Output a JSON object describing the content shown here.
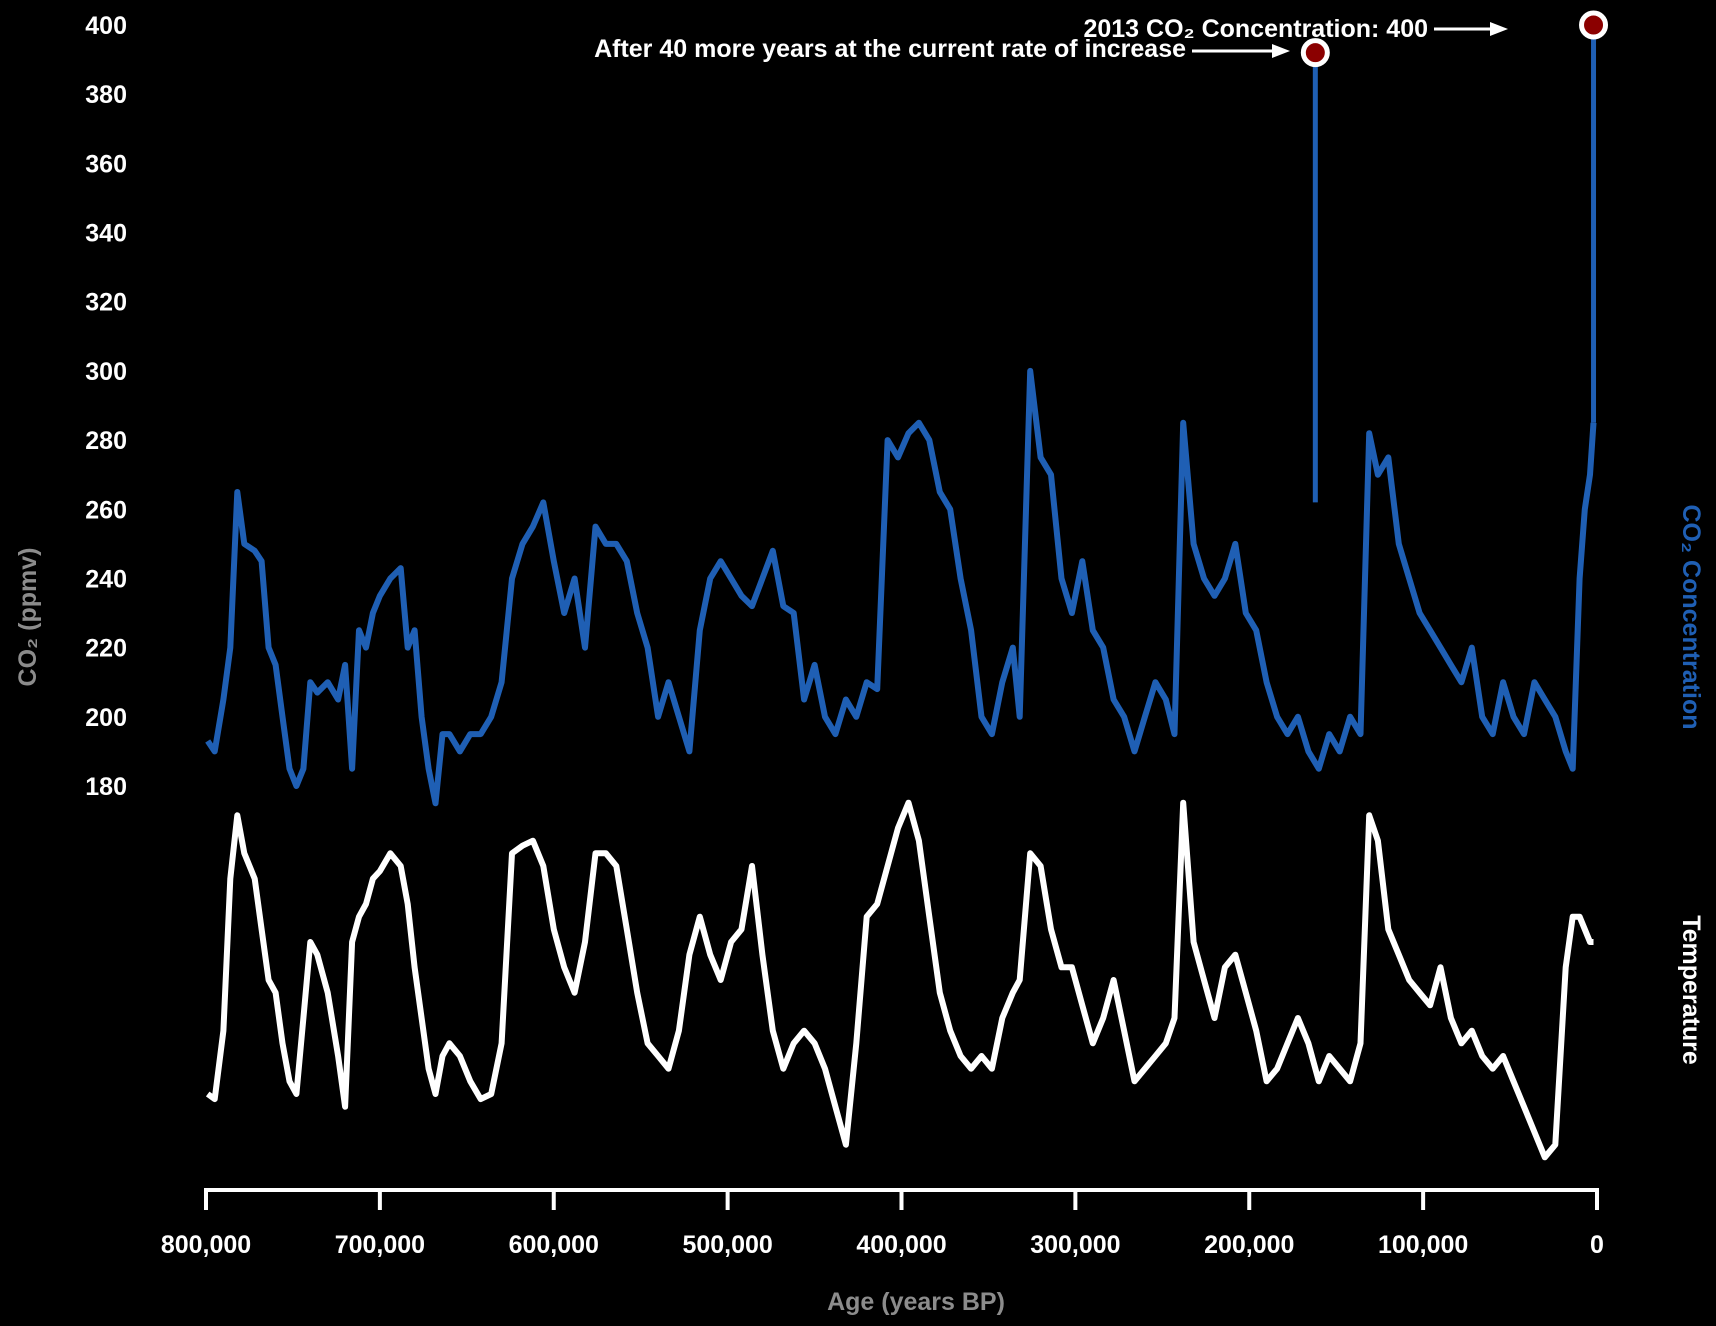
{
  "chart_data": {
    "type": "line",
    "xlabel": "Age (years BP)",
    "ylabel": "CO₂ (ppmv)",
    "xlim": [
      800000,
      0
    ],
    "ylim": [
      180,
      400
    ],
    "x_ticks": [
      "800,000",
      "700,000",
      "600,000",
      "500,000",
      "400,000",
      "300,000",
      "200,000",
      "100,000",
      "0"
    ],
    "y_ticks": [
      "180",
      "200",
      "220",
      "240",
      "260",
      "280",
      "300",
      "320",
      "340",
      "360",
      "380",
      "400"
    ],
    "colors": {
      "co2": "#1f5fb4",
      "temperature": "#ffffff",
      "marker": "#8b0000",
      "background": "#000000"
    },
    "series": [
      {
        "name": "CO₂ Concentration",
        "x": [
          799000,
          795000,
          790000,
          786000,
          782000,
          778000,
          772000,
          768000,
          764000,
          760000,
          756000,
          752000,
          748000,
          744000,
          740000,
          736000,
          730000,
          724000,
          720000,
          716000,
          712000,
          708000,
          704000,
          700000,
          694000,
          688000,
          684000,
          680000,
          676000,
          672000,
          668000,
          664000,
          660000,
          654000,
          648000,
          642000,
          636000,
          630000,
          624000,
          618000,
          612000,
          606000,
          600000,
          594000,
          588000,
          582000,
          576000,
          570000,
          564000,
          558000,
          552000,
          546000,
          540000,
          534000,
          528000,
          522000,
          516000,
          510000,
          504000,
          498000,
          492000,
          486000,
          480000,
          474000,
          468000,
          462000,
          456000,
          450000,
          444000,
          438000,
          432000,
          426000,
          420000,
          414000,
          408000,
          402000,
          396000,
          390000,
          384000,
          378000,
          372000,
          366000,
          360000,
          354000,
          348000,
          342000,
          336000,
          332000,
          326000,
          320000,
          314000,
          308000,
          302000,
          296000,
          290000,
          284000,
          278000,
          272000,
          266000,
          260000,
          254000,
          248000,
          243000,
          238000,
          232000,
          226000,
          220000,
          214000,
          208000,
          202000,
          196000,
          190000,
          184000,
          178000,
          172000,
          166000,
          160000,
          154000,
          148000,
          142000,
          136000,
          131000,
          126000,
          120000,
          114000,
          108000,
          102000,
          96000,
          90000,
          84000,
          78000,
          72000,
          66000,
          60000,
          54000,
          48000,
          42000,
          36000,
          30000,
          24000,
          18000,
          14000,
          10000,
          7000,
          4000,
          2000
        ],
        "values": [
          193,
          190,
          205,
          220,
          265,
          250,
          248,
          245,
          220,
          215,
          200,
          185,
          180,
          185,
          210,
          207,
          210,
          205,
          215,
          185,
          225,
          220,
          230,
          235,
          240,
          243,
          220,
          225,
          200,
          185,
          175,
          195,
          195,
          190,
          195,
          195,
          200,
          210,
          240,
          250,
          255,
          262,
          245,
          230,
          240,
          220,
          255,
          250,
          250,
          245,
          230,
          220,
          200,
          210,
          200,
          190,
          225,
          240,
          245,
          240,
          235,
          232,
          240,
          248,
          232,
          230,
          205,
          215,
          200,
          195,
          205,
          200,
          210,
          208,
          280,
          275,
          282,
          285,
          280,
          265,
          260,
          240,
          225,
          200,
          195,
          210,
          220,
          200,
          300,
          275,
          270,
          240,
          230,
          245,
          225,
          220,
          205,
          200,
          190,
          200,
          210,
          205,
          195,
          285,
          250,
          240,
          235,
          240,
          250,
          230,
          225,
          210,
          200,
          195,
          200,
          190,
          185,
          195,
          190,
          200,
          195,
          282,
          270,
          275,
          250,
          240,
          230,
          225,
          220,
          215,
          210,
          220,
          200,
          195,
          210,
          200,
          195,
          210,
          205,
          200,
          190,
          185,
          240,
          260,
          270,
          285
        ]
      },
      {
        "name": "Temperature",
        "x": [
          799000,
          795000,
          790000,
          786000,
          782000,
          778000,
          772000,
          768000,
          764000,
          760000,
          756000,
          752000,
          748000,
          744000,
          740000,
          736000,
          730000,
          724000,
          720000,
          716000,
          712000,
          708000,
          704000,
          700000,
          694000,
          688000,
          684000,
          680000,
          676000,
          672000,
          668000,
          664000,
          660000,
          654000,
          648000,
          642000,
          636000,
          630000,
          624000,
          618000,
          612000,
          606000,
          600000,
          594000,
          588000,
          582000,
          576000,
          570000,
          564000,
          558000,
          552000,
          546000,
          540000,
          534000,
          528000,
          522000,
          516000,
          510000,
          504000,
          498000,
          492000,
          486000,
          480000,
          474000,
          468000,
          462000,
          456000,
          450000,
          444000,
          438000,
          432000,
          426000,
          420000,
          414000,
          408000,
          402000,
          396000,
          390000,
          384000,
          378000,
          372000,
          366000,
          360000,
          354000,
          348000,
          342000,
          336000,
          332000,
          326000,
          320000,
          314000,
          308000,
          302000,
          296000,
          290000,
          284000,
          278000,
          272000,
          266000,
          260000,
          254000,
          248000,
          243000,
          238000,
          232000,
          226000,
          220000,
          214000,
          208000,
          202000,
          196000,
          190000,
          184000,
          178000,
          172000,
          166000,
          160000,
          154000,
          148000,
          142000,
          136000,
          131000,
          126000,
          120000,
          114000,
          108000,
          102000,
          96000,
          90000,
          84000,
          78000,
          72000,
          66000,
          60000,
          54000,
          48000,
          42000,
          36000,
          30000,
          24000,
          18000,
          14000,
          10000,
          7000,
          4000,
          2000
        ],
        "values": [
          -8.0,
          -8.2,
          -5.5,
          0.5,
          3.0,
          1.5,
          0.5,
          -1.5,
          -3.5,
          -4.0,
          -6.0,
          -7.5,
          -8.0,
          -5.0,
          -2.0,
          -2.5,
          -4.0,
          -6.5,
          -8.5,
          -2.0,
          -1.0,
          -0.5,
          0.5,
          0.8,
          1.5,
          1.0,
          -0.5,
          -3.0,
          -5.0,
          -7.0,
          -8.0,
          -6.5,
          -6.0,
          -6.5,
          -7.5,
          -8.2,
          -8.0,
          -6.0,
          1.5,
          1.8,
          2.0,
          1.0,
          -1.5,
          -3.0,
          -4.0,
          -2.0,
          1.5,
          1.5,
          1.0,
          -1.5,
          -4.0,
          -6.0,
          -6.5,
          -7.0,
          -5.5,
          -2.5,
          -1.0,
          -2.5,
          -3.5,
          -2.0,
          -1.5,
          1.0,
          -2.5,
          -5.5,
          -7.0,
          -6.0,
          -5.5,
          -6.0,
          -7.0,
          -8.5,
          -10.0,
          -6.0,
          -1.0,
          -0.5,
          1.0,
          2.5,
          3.5,
          2.0,
          -1.0,
          -4.0,
          -5.5,
          -6.5,
          -7.0,
          -6.5,
          -7.0,
          -5.0,
          -4.0,
          -3.5,
          1.5,
          1.0,
          -1.5,
          -3.0,
          -3.0,
          -4.5,
          -6.0,
          -5.0,
          -3.5,
          -5.5,
          -7.5,
          -7.0,
          -6.5,
          -6.0,
          -5.0,
          3.5,
          -2.0,
          -3.5,
          -5.0,
          -3.0,
          -2.5,
          -4.0,
          -5.5,
          -7.5,
          -7.0,
          -6.0,
          -5.0,
          -6.0,
          -7.5,
          -6.5,
          -7.0,
          -7.5,
          -6.0,
          3.0,
          2.0,
          -1.5,
          -2.5,
          -3.5,
          -4.0,
          -4.5,
          -3.0,
          -5.0,
          -6.0,
          -5.5,
          -6.5,
          -7.0,
          -6.5,
          -7.5,
          -8.5,
          -9.5,
          -10.5,
          -10.0,
          -3.0,
          -1.0,
          -1.0,
          -1.5,
          -2.0,
          -2.0
        ]
      }
    ],
    "series_labels": {
      "co2": "CO₂ Concentration",
      "temperature": "Temperature"
    },
    "annotations": [
      {
        "text": "2013 CO₂ Concentration: 400",
        "x": 2000,
        "y": 400
      },
      {
        "text": "After 40 more years at the current rate of increase",
        "x": 162000,
        "y": 392
      }
    ]
  }
}
